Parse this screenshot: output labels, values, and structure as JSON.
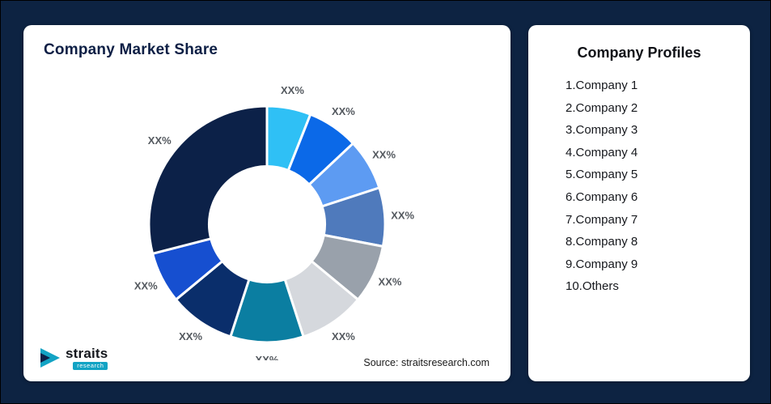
{
  "page": {
    "background": "#0d2342"
  },
  "left_card": {
    "title": "Company Market Share",
    "source": "Source: straitsresearch.com",
    "logo": {
      "brand": "straits",
      "sub": "research"
    }
  },
  "right_card": {
    "title": "Company Profiles",
    "items": [
      "1.Company 1",
      "2.Company 2",
      "3.Company 3",
      "4.Company 4",
      "5.Company 5",
      "6.Company 6",
      "7.Company 7",
      "8.Company 8",
      "9.Company 9",
      "10.Others"
    ]
  },
  "chart_data": {
    "type": "pie",
    "subtype": "donut",
    "title": "Company Market Share",
    "legend_position": "none",
    "start_angle_deg": 0,
    "direction": "clockwise",
    "inner_radius_ratio": 0.49,
    "note": "All slices are labeled XX% in the source image; values are angular estimates from pixels",
    "slices": [
      {
        "name": "Company 1",
        "label": "XX%",
        "value_pct_est": 6,
        "color": "#2fc0f5"
      },
      {
        "name": "Company 2",
        "label": "XX%",
        "value_pct_est": 7,
        "color": "#0b69e8"
      },
      {
        "name": "Company 3",
        "label": "XX%",
        "value_pct_est": 7,
        "color": "#5d9bf2"
      },
      {
        "name": "Company 4",
        "label": "XX%",
        "value_pct_est": 8,
        "color": "#4f7abc"
      },
      {
        "name": "Company 5",
        "label": "XX%",
        "value_pct_est": 8,
        "color": "#99a1ab"
      },
      {
        "name": "Company 6",
        "label": "XX%",
        "value_pct_est": 9,
        "color": "#d5d8dd"
      },
      {
        "name": "Company 7",
        "label": "XX%",
        "value_pct_est": 10,
        "color": "#0b7ea1"
      },
      {
        "name": "Company 8",
        "label": "XX%",
        "value_pct_est": 9,
        "color": "#0a2e6b"
      },
      {
        "name": "Company 9",
        "label": "XX%",
        "value_pct_est": 7,
        "color": "#164fd0"
      },
      {
        "name": "Others",
        "label": "XX%",
        "value_pct_est": 29,
        "color": "#0c2148"
      }
    ]
  }
}
